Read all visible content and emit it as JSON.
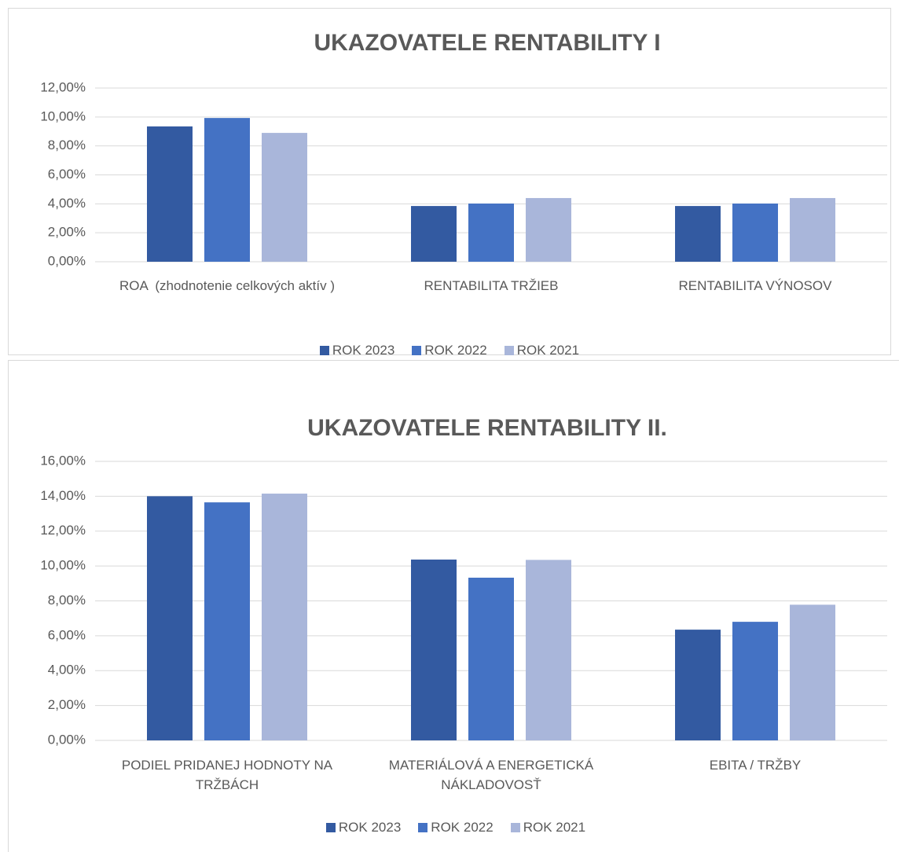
{
  "chart_data": [
    {
      "type": "bar",
      "title": "UKAZOVATELE  RENTABILITY I",
      "categories": [
        "ROA  (zhodnotenie celkových aktív )",
        "RENTABILITA TRŽIEB",
        "RENTABILITA VÝNOSOV"
      ],
      "series": [
        {
          "name": "ROK 2023",
          "color": "#335aa1",
          "values": [
            9.35,
            3.85,
            3.85
          ]
        },
        {
          "name": "ROK 2022",
          "color": "#4472c4",
          "values": [
            9.93,
            4.02,
            4.02
          ]
        },
        {
          "name": "ROK 2021",
          "color": "#a9b6da",
          "values": [
            8.9,
            4.4,
            4.4
          ]
        }
      ],
      "ylim": [
        0,
        12
      ],
      "yticks": [
        {
          "value": 0,
          "label": "0,00%"
        },
        {
          "value": 2,
          "label": "2,00%"
        },
        {
          "value": 4,
          "label": "4,00%"
        },
        {
          "value": 6,
          "label": "6,00%"
        },
        {
          "value": 8,
          "label": "8,00%"
        },
        {
          "value": 10,
          "label": "10,00%"
        },
        {
          "value": 12,
          "label": "12,00%"
        }
      ],
      "grid": true,
      "legend": "bottom"
    },
    {
      "type": "bar",
      "title": "UKAZOVATELE  RENTABILITY II.",
      "categories": [
        "PODIEL PRIDANEJ HODNOTY NA TRŽBÁCH",
        "MATERIÁLOVÁ A ENERGETICKÁ NÁKLADOVOSŤ",
        "EBITA / TRŽBY"
      ],
      "series": [
        {
          "name": "ROK 2023",
          "color": "#335aa1",
          "values": [
            14.0,
            10.37,
            6.35
          ]
        },
        {
          "name": "ROK 2022",
          "color": "#4472c4",
          "values": [
            13.65,
            9.33,
            6.8
          ]
        },
        {
          "name": "ROK 2021",
          "color": "#a9b6da",
          "values": [
            14.15,
            10.35,
            7.78
          ]
        }
      ],
      "ylim": [
        0,
        16
      ],
      "yticks": [
        {
          "value": 0,
          "label": "0,00%"
        },
        {
          "value": 2,
          "label": "2,00%"
        },
        {
          "value": 4,
          "label": "4,00%"
        },
        {
          "value": 6,
          "label": "6,00%"
        },
        {
          "value": 8,
          "label": "8,00%"
        },
        {
          "value": 10,
          "label": "10,00%"
        },
        {
          "value": 12,
          "label": "12,00%"
        },
        {
          "value": 14,
          "label": "14,00%"
        },
        {
          "value": 16,
          "label": "16,00%"
        }
      ],
      "grid": true,
      "legend": "bottom"
    }
  ]
}
